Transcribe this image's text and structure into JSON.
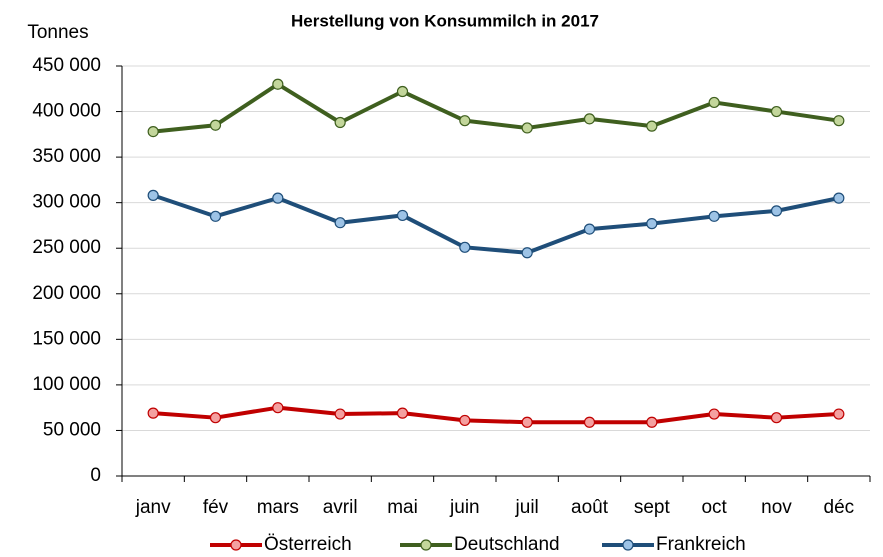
{
  "chart_data": {
    "type": "line",
    "title": "Herstellung von Konsummilch  in 2017",
    "y_label": "Tonnes",
    "categories": [
      "janv",
      "fév",
      "mars",
      "avril",
      "mai",
      "juin",
      "juil",
      "août",
      "sept",
      "oct",
      "nov",
      "déc"
    ],
    "series": [
      {
        "name": "Österreich",
        "color": "#c00000",
        "marker_color": "#f4a0a0",
        "values": [
          69000,
          64000,
          75000,
          68000,
          69000,
          61000,
          59000,
          59000,
          59000,
          68000,
          64000,
          68000
        ]
      },
      {
        "name": "Deutschland",
        "color": "#3f5f1f",
        "marker_color": "#c3d69b",
        "values": [
          378000,
          385000,
          430000,
          388000,
          422000,
          390000,
          382000,
          392000,
          384000,
          410000,
          400000,
          390000
        ]
      },
      {
        "name": "Frankreich",
        "color": "#1f4e79",
        "marker_color": "#9dc3e6",
        "values": [
          308000,
          285000,
          305000,
          278000,
          286000,
          251000,
          245000,
          271000,
          277000,
          285000,
          291000,
          305000
        ]
      }
    ],
    "ylim": [
      0,
      450000
    ],
    "yticks": [
      0,
      {
        "value": 50000,
        "label": "50 000"
      },
      {
        "value": 100000,
        "label": "100 000"
      },
      {
        "value": 150000,
        "label": "150 000"
      },
      {
        "value": 200000,
        "label": "200 000"
      },
      {
        "value": 250000,
        "label": "250 000"
      },
      {
        "value": 300000,
        "label": "300 000"
      },
      {
        "value": 350000,
        "label": "350 000"
      },
      {
        "value": 400000,
        "label": "400 000"
      },
      {
        "value": 450000,
        "label": "450 000"
      }
    ],
    "grid": true,
    "legend": "bottom"
  }
}
